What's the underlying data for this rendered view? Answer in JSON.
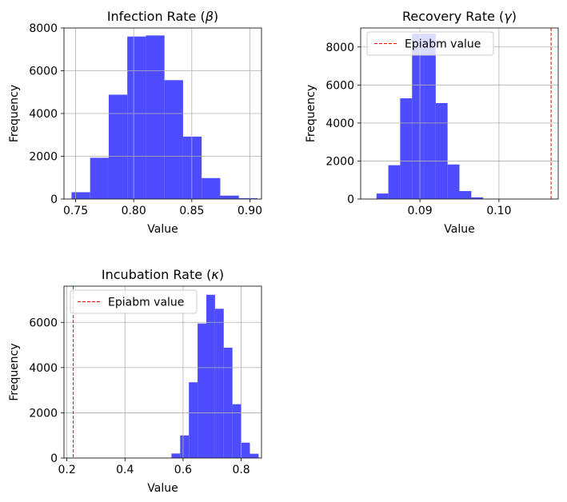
{
  "colors": {
    "bar": "#4d4dff",
    "reference_line": "#ff0000",
    "grid": "#b0b0b0",
    "axis": "#000000"
  },
  "chart_data": [
    {
      "type": "bar",
      "title": "Infection Rate (β)",
      "title_parts": [
        "Infection Rate (",
        "β",
        ")"
      ],
      "xlabel": "Value",
      "ylabel": "Frequency",
      "xlim": [
        0.74,
        0.91
      ],
      "ylim": [
        0,
        8000
      ],
      "xticks": [
        0.75,
        0.8,
        0.85,
        0.9
      ],
      "xtick_labels": [
        "0.75",
        "0.80",
        "0.85",
        "0.90"
      ],
      "yticks": [
        0,
        2000,
        4000,
        6000,
        8000
      ],
      "ytick_labels": [
        "0",
        "2000",
        "4000",
        "6000",
        "8000"
      ],
      "grid": true,
      "legend": null,
      "reference_line": null,
      "bins": [
        {
          "x0": 0.7465,
          "x1": 0.7625,
          "count": 320
        },
        {
          "x0": 0.7625,
          "x1": 0.7785,
          "count": 1930
        },
        {
          "x0": 0.7785,
          "x1": 0.7945,
          "count": 4880
        },
        {
          "x0": 0.7945,
          "x1": 0.8105,
          "count": 7600
        },
        {
          "x0": 0.8105,
          "x1": 0.8265,
          "count": 7650
        },
        {
          "x0": 0.8265,
          "x1": 0.8425,
          "count": 5560
        },
        {
          "x0": 0.8425,
          "x1": 0.8585,
          "count": 2920
        },
        {
          "x0": 0.8585,
          "x1": 0.8745,
          "count": 980
        },
        {
          "x0": 0.8745,
          "x1": 0.8905,
          "count": 160
        },
        {
          "x0": 0.8905,
          "x1": 0.9065,
          "count": 40
        }
      ]
    },
    {
      "type": "bar",
      "title": "Recovery Rate (γ)",
      "title_parts": [
        "Recovery Rate (",
        "γ",
        ")"
      ],
      "xlabel": "Value",
      "ylabel": "Frequency",
      "xlim": [
        0.0825,
        0.1075
      ],
      "ylim": [
        0,
        9000
      ],
      "xticks": [
        0.09,
        0.1
      ],
      "xtick_labels": [
        "0.09",
        "0.10"
      ],
      "yticks": [
        0,
        2000,
        4000,
        6000,
        8000
      ],
      "ytick_labels": [
        "0",
        "2000",
        "4000",
        "6000",
        "8000"
      ],
      "grid": true,
      "legend": {
        "label": "Epiabm value",
        "placement": "upper-left"
      },
      "reference_line": {
        "x": 0.1066
      },
      "bins": [
        {
          "x0": 0.0845,
          "x1": 0.086,
          "count": 290
        },
        {
          "x0": 0.086,
          "x1": 0.0875,
          "count": 1780
        },
        {
          "x0": 0.0875,
          "x1": 0.089,
          "count": 5300
        },
        {
          "x0": 0.089,
          "x1": 0.0905,
          "count": 8700
        },
        {
          "x0": 0.0905,
          "x1": 0.092,
          "count": 8700
        },
        {
          "x0": 0.092,
          "x1": 0.0935,
          "count": 5050
        },
        {
          "x0": 0.0935,
          "x1": 0.095,
          "count": 1820
        },
        {
          "x0": 0.095,
          "x1": 0.0965,
          "count": 420
        },
        {
          "x0": 0.0965,
          "x1": 0.098,
          "count": 90
        }
      ]
    },
    {
      "type": "bar",
      "title": "Incubation Rate (κ)",
      "title_parts": [
        "Incubation Rate (",
        "κ",
        ")"
      ],
      "xlabel": "Value",
      "ylabel": "Frequency",
      "xlim": [
        0.19,
        0.87
      ],
      "ylim": [
        0,
        7600
      ],
      "xticks": [
        0.2,
        0.4,
        0.6,
        0.8
      ],
      "xtick_labels": [
        "0.2",
        "0.4",
        "0.6",
        "0.8"
      ],
      "yticks": [
        0,
        2000,
        4000,
        6000
      ],
      "ytick_labels": [
        "0",
        "2000",
        "4000",
        "6000"
      ],
      "grid": true,
      "legend": {
        "label": "Epiabm value",
        "placement": "upper-left"
      },
      "reference_line": {
        "x": 0.222
      },
      "bins": [
        {
          "x0": 0.56,
          "x1": 0.59,
          "count": 200
        },
        {
          "x0": 0.59,
          "x1": 0.62,
          "count": 1000
        },
        {
          "x0": 0.62,
          "x1": 0.65,
          "count": 3350
        },
        {
          "x0": 0.65,
          "x1": 0.68,
          "count": 5950
        },
        {
          "x0": 0.68,
          "x1": 0.71,
          "count": 7220
        },
        {
          "x0": 0.71,
          "x1": 0.74,
          "count": 6600
        },
        {
          "x0": 0.74,
          "x1": 0.77,
          "count": 4880
        },
        {
          "x0": 0.77,
          "x1": 0.8,
          "count": 2380
        },
        {
          "x0": 0.8,
          "x1": 0.83,
          "count": 680
        },
        {
          "x0": 0.83,
          "x1": 0.86,
          "count": 190
        }
      ]
    }
  ]
}
